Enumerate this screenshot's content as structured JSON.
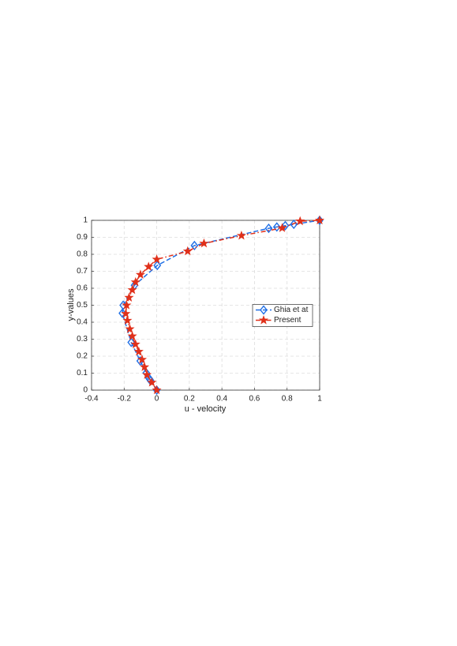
{
  "chart_data": {
    "type": "line",
    "xlabel": "u - velocity",
    "ylabel": "y-values",
    "xlim": [
      -0.4,
      1
    ],
    "ylim": [
      0,
      1
    ],
    "xticks": [
      -0.4,
      -0.2,
      0,
      0.2,
      0.4,
      0.6,
      0.8,
      1
    ],
    "yticks": [
      0,
      0.1,
      0.2,
      0.3,
      0.4,
      0.5,
      0.6,
      0.7,
      0.8,
      0.9,
      1
    ],
    "grid": true,
    "legend": "right",
    "series": [
      {
        "name": "Ghia et at",
        "color": "#1f6fe6",
        "marker": "diamond",
        "linestyle": "dashed",
        "x": [
          0,
          -0.03717,
          -0.04192,
          -0.04775,
          -0.06434,
          -0.1015,
          -0.15662,
          -0.2109,
          -0.20581,
          -0.13641,
          0.00332,
          0.23151,
          0.68717,
          0.73722,
          0.78871,
          0.84123,
          1
        ],
        "values": [
          0,
          0.0547,
          0.0625,
          0.0703,
          0.1016,
          0.1719,
          0.2813,
          0.4531,
          0.5,
          0.6172,
          0.7344,
          0.8516,
          0.9531,
          0.9609,
          0.9688,
          0.9766,
          1
        ]
      },
      {
        "name": "Present",
        "color": "#e0301a",
        "marker": "star",
        "linestyle": "dashdot",
        "x": [
          0,
          -0.03,
          -0.06,
          -0.075,
          -0.09,
          -0.11,
          -0.13,
          -0.15,
          -0.165,
          -0.18,
          -0.19,
          -0.185,
          -0.17,
          -0.15,
          -0.13,
          -0.1,
          -0.05,
          0,
          0.19,
          0.29,
          0.52,
          0.77,
          0.88,
          1
        ],
        "values": [
          0,
          0.045,
          0.09,
          0.136,
          0.18,
          0.227,
          0.27,
          0.318,
          0.36,
          0.41,
          0.45,
          0.5,
          0.545,
          0.59,
          0.636,
          0.68,
          0.727,
          0.77,
          0.818,
          0.864,
          0.91,
          0.955,
          0.995,
          1
        ]
      }
    ]
  }
}
